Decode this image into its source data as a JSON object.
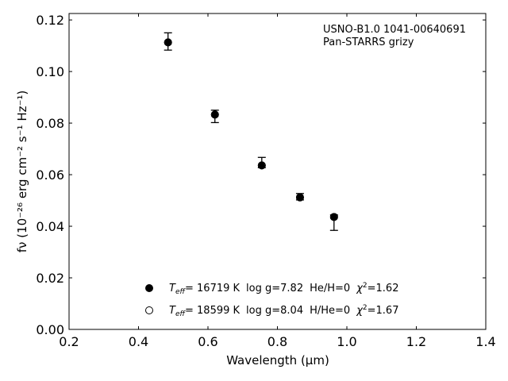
{
  "chart_data": {
    "type": "scatter",
    "title": "",
    "xlabel": "Wavelength (μm)",
    "ylabel": "fν (10⁻²⁶ erg cm⁻² s⁻¹ Hz⁻¹)",
    "xlim": [
      0.2,
      1.4
    ],
    "ylim": [
      0.0,
      0.1225
    ],
    "x_ticks": [
      "0.2",
      "0.4",
      "0.6",
      "0.8",
      "1.0",
      "1.2",
      "1.4"
    ],
    "y_ticks": [
      "0.00",
      "0.02",
      "0.04",
      "0.06",
      "0.08",
      "0.10",
      "0.12"
    ],
    "annotation_lines": [
      "USNO-B1.0 1041-00640691",
      "Pan-STARRS grizy"
    ],
    "series": [
      {
        "marker": "filled",
        "x": [
          0.485,
          0.62,
          0.755,
          0.865,
          0.963
        ],
        "y": [
          0.1113,
          0.0833,
          0.0636,
          0.0512,
          0.0436
        ]
      },
      {
        "marker": "open",
        "x": [
          0.485,
          0.62,
          0.755,
          0.865,
          0.963
        ],
        "y": [
          0.1113,
          0.0833,
          0.0636,
          0.0512,
          0.0436
        ]
      }
    ],
    "observed": {
      "x": [
        0.485,
        0.62,
        0.755,
        0.865,
        0.963
      ],
      "y": [
        0.1113,
        0.0833,
        0.0636,
        0.0512,
        0.0436
      ],
      "y_low": [
        0.1083,
        0.0802,
        0.0627,
        0.0502,
        0.0384
      ],
      "y_high": [
        0.115,
        0.085,
        0.0667,
        0.0527,
        0.0444
      ]
    },
    "legend": [
      {
        "marker": "filled",
        "temp": "= 16719 K",
        "logg": "log g=7.82",
        "comp": "He/H=0",
        "chi": "=1.62"
      },
      {
        "marker": "open",
        "temp": "= 18599 K",
        "logg": "log g=8.04",
        "comp": "H/He=0",
        "chi": "=1.67"
      }
    ],
    "legend_placement": "lower-center",
    "grid": false
  }
}
